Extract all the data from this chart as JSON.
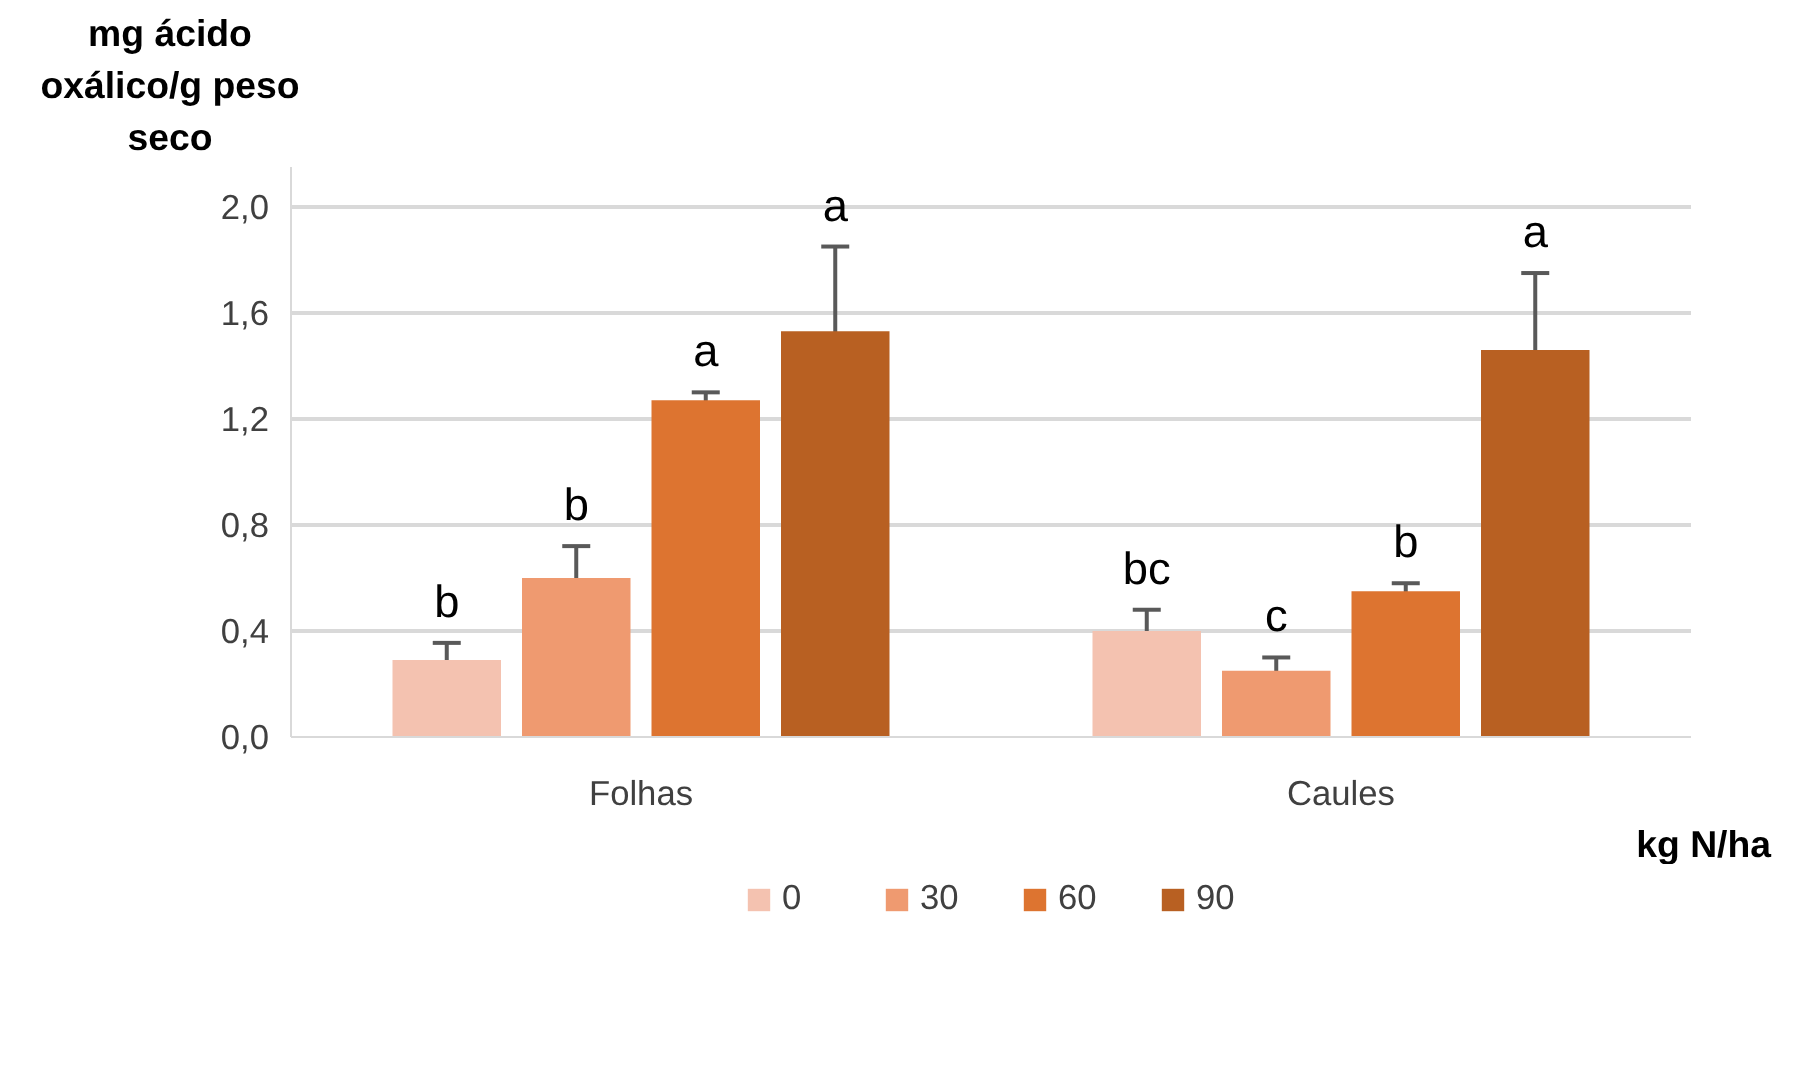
{
  "chart_data": {
    "type": "bar",
    "ylabel": "mg ácido oxálico/g peso seco",
    "xlabel": "kg N/ha",
    "categories": [
      "Folhas",
      "Caules"
    ],
    "series": [
      {
        "name": "0",
        "color": "#f4c2b0",
        "values": [
          0.29,
          0.4
        ],
        "errors": [
          0.065,
          0.08
        ],
        "value_labels": [
          "b",
          "bc"
        ]
      },
      {
        "name": "30",
        "color": "#ef9a70",
        "values": [
          0.6,
          0.25
        ],
        "errors": [
          0.12,
          0.05
        ],
        "value_labels": [
          "b",
          "c"
        ]
      },
      {
        "name": "60",
        "color": "#dd7430",
        "values": [
          1.27,
          0.55
        ],
        "errors": [
          0.03,
          0.03
        ],
        "value_labels": [
          "a",
          "b"
        ]
      },
      {
        "name": "90",
        "color": "#b86022",
        "values": [
          1.53,
          1.46
        ],
        "errors": [
          0.32,
          0.29
        ],
        "value_labels": [
          "a",
          "a"
        ]
      }
    ],
    "ylim": [
      0,
      2.15
    ],
    "yticks": [
      {
        "value": 0,
        "label": "0,0"
      },
      {
        "value": 0.4,
        "label": "0,4"
      },
      {
        "value": 0.8,
        "label": "0,8"
      },
      {
        "value": 1.2,
        "label": "1,2"
      },
      {
        "value": 1.6,
        "label": "1,6"
      },
      {
        "value": 2.0,
        "label": "2,0"
      }
    ],
    "grid": "y",
    "legend": "bottom"
  }
}
